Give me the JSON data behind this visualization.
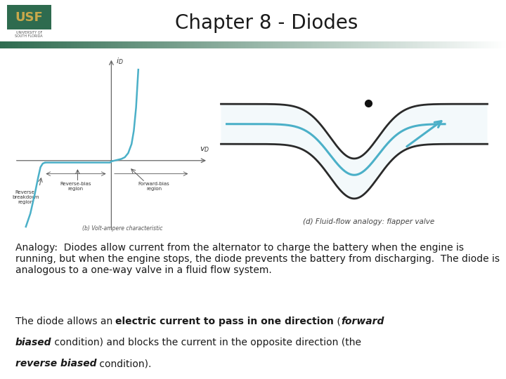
{
  "title": "Chapter 8 - Diodes",
  "title_fontsize": 20,
  "bg_color": "#ffffff",
  "header_bar_color_left": "#2e6b4f",
  "usf_box_color": "#2e6b4f",
  "usf_text": "USF",
  "usf_gold": "#c8a84b",
  "usf_sub1": "UNIVERSITY OF",
  "usf_sub2": "SOUTH FLORIDA",
  "para1": "Analogy:  Diodes allow current from the alternator to charge the battery when the engine is running, but when the engine stops, the diode prevents the battery from discharging.  The diode is analogous to a one-way valve in a fluid flow system.",
  "diode_curve_color": "#4bb0c8",
  "flapper_curve_color": "#4bb0c8",
  "arrow_color": "#4bb0c8",
  "caption1": "(b) Volt-ampere characteristic",
  "caption2": "(d) Fluid-flow analogy: flapper valve"
}
